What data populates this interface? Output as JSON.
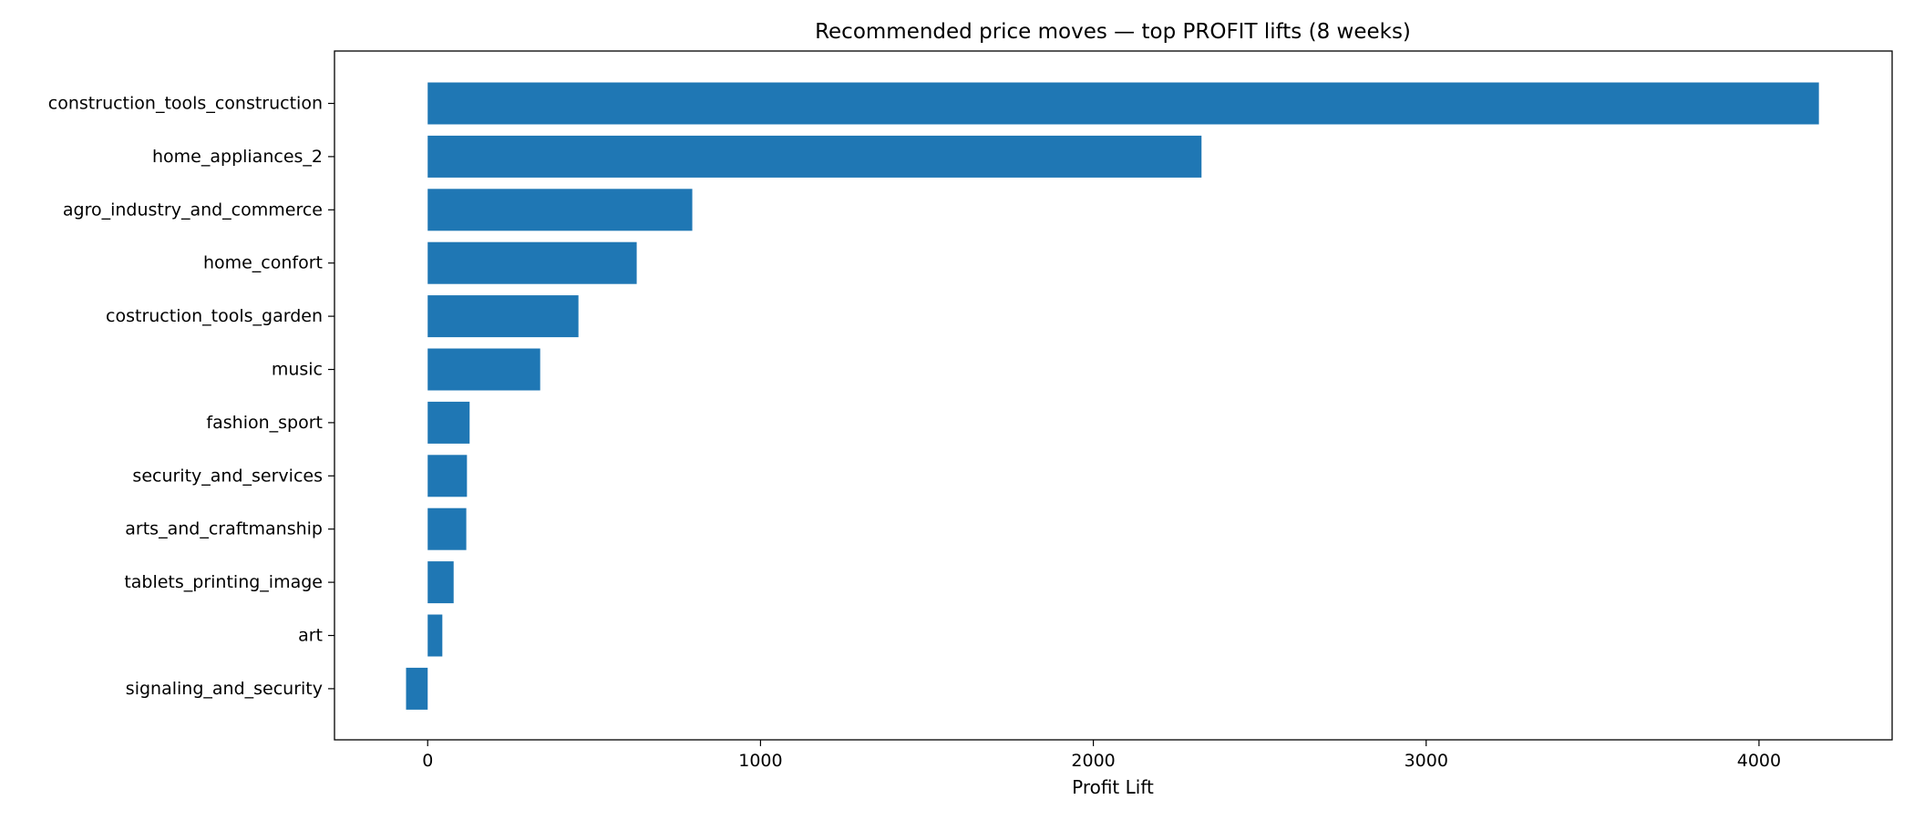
{
  "chart_data": {
    "type": "bar",
    "orientation": "horizontal",
    "title": "Recommended price moves — top PROFIT lifts (8 weeks)",
    "xlabel": "Profit Lift",
    "ylabel": "",
    "categories": [
      "construction_tools_construction",
      "home_appliances_2",
      "agro_industry_and_commerce",
      "home_confort",
      "costruction_tools_garden",
      "music",
      "fashion_sport",
      "security_and_services",
      "arts_and_craftmanship",
      "tablets_printing_image",
      "art",
      "signaling_and_security"
    ],
    "values": [
      4180,
      2325,
      795,
      628,
      453,
      338,
      126,
      118,
      116,
      78,
      44,
      -65
    ],
    "xlim": [
      -280,
      4400
    ],
    "xticks": [
      0,
      1000,
      2000,
      3000,
      4000
    ],
    "bar_color": "#1f77b4",
    "grid": false,
    "legend": "none"
  }
}
